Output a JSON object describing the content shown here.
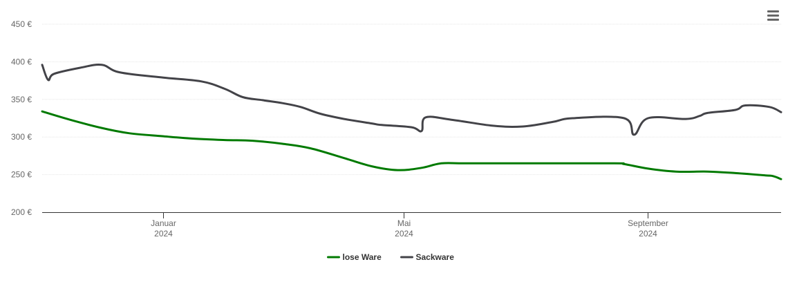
{
  "menu": {
    "icon": "hamburger-menu-icon"
  },
  "chart_data": {
    "type": "line",
    "title": "",
    "xlabel": "",
    "ylabel": "",
    "x_range": [
      "2023-11-01",
      "2024-11-07"
    ],
    "ylim": [
      200,
      450
    ],
    "y_ticks": [
      200,
      250,
      300,
      350,
      400,
      450
    ],
    "y_tick_labels": [
      "200 €",
      "250 €",
      "300 €",
      "350 €",
      "400 €",
      "450 €"
    ],
    "x_ticks": [
      {
        "date": "2024-01-01",
        "month": "Januar",
        "year": "2024"
      },
      {
        "date": "2024-05-01",
        "month": "Mai",
        "year": "2024"
      },
      {
        "date": "2024-09-01",
        "month": "September",
        "year": "2024"
      }
    ],
    "grid": true,
    "legend_position": "bottom-center",
    "series": [
      {
        "name": "lose Ware",
        "color": "#007a00",
        "points": [
          [
            "2023-11-01",
            334
          ],
          [
            "2023-11-15",
            323
          ],
          [
            "2023-12-01",
            312
          ],
          [
            "2023-12-15",
            305
          ],
          [
            "2024-01-01",
            301
          ],
          [
            "2024-01-15",
            298
          ],
          [
            "2024-02-01",
            296
          ],
          [
            "2024-02-15",
            295
          ],
          [
            "2024-03-01",
            291
          ],
          [
            "2024-03-15",
            285
          ],
          [
            "2024-04-01",
            272
          ],
          [
            "2024-04-15",
            261
          ],
          [
            "2024-04-28",
            256
          ],
          [
            "2024-05-10",
            259
          ],
          [
            "2024-05-20",
            265
          ],
          [
            "2024-06-01",
            265
          ],
          [
            "2024-07-01",
            265
          ],
          [
            "2024-08-15",
            265
          ],
          [
            "2024-08-20",
            264
          ],
          [
            "2024-09-01",
            258
          ],
          [
            "2024-09-15",
            254
          ],
          [
            "2024-10-01",
            254
          ],
          [
            "2024-10-15",
            252
          ],
          [
            "2024-10-30",
            249
          ],
          [
            "2024-11-03",
            248
          ],
          [
            "2024-11-07",
            244
          ]
        ]
      },
      {
        "name": "Sackware",
        "color": "#434348",
        "points": [
          [
            "2023-11-01",
            396
          ],
          [
            "2023-11-04",
            376
          ],
          [
            "2023-11-07",
            384
          ],
          [
            "2023-11-20",
            392
          ],
          [
            "2023-12-01",
            396
          ],
          [
            "2023-12-10",
            386
          ],
          [
            "2024-01-01",
            379
          ],
          [
            "2024-01-20",
            374
          ],
          [
            "2024-02-01",
            364
          ],
          [
            "2024-02-10",
            353
          ],
          [
            "2024-02-20",
            349
          ],
          [
            "2024-03-01",
            345
          ],
          [
            "2024-03-10",
            340
          ],
          [
            "2024-03-20",
            331
          ],
          [
            "2024-04-01",
            324
          ],
          [
            "2024-04-15",
            318
          ],
          [
            "2024-04-20",
            316
          ],
          [
            "2024-05-05",
            313
          ],
          [
            "2024-05-10",
            308
          ],
          [
            "2024-05-12",
            326
          ],
          [
            "2024-05-25",
            323
          ],
          [
            "2024-06-15",
            315
          ],
          [
            "2024-06-30",
            314
          ],
          [
            "2024-07-15",
            320
          ],
          [
            "2024-07-25",
            325
          ],
          [
            "2024-08-20",
            325
          ],
          [
            "2024-08-25",
            303
          ],
          [
            "2024-09-01",
            325
          ],
          [
            "2024-09-20",
            324
          ],
          [
            "2024-09-27",
            328
          ],
          [
            "2024-10-01",
            332
          ],
          [
            "2024-10-15",
            336
          ],
          [
            "2024-10-20",
            342
          ],
          [
            "2024-11-01",
            340
          ],
          [
            "2024-11-07",
            333
          ]
        ]
      }
    ]
  }
}
